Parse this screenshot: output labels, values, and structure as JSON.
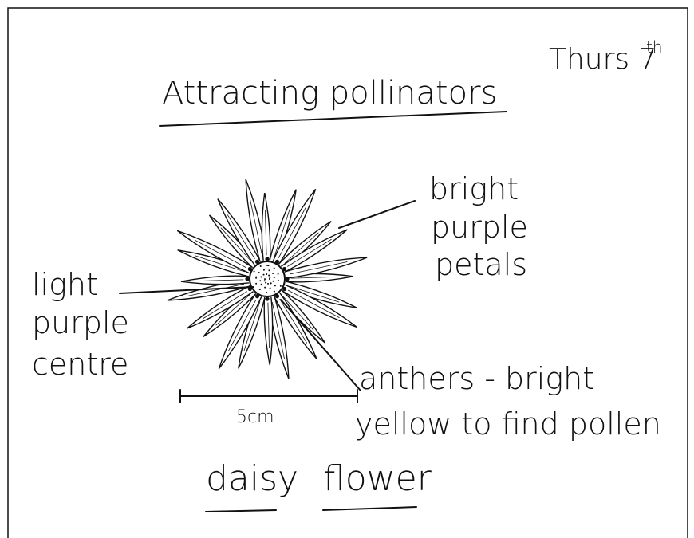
{
  "header": {
    "title": "Attracting pollinators",
    "date": "Thurs 7",
    "date_superscript": "th"
  },
  "labels": {
    "petals": [
      "bright",
      "purple",
      "petals"
    ],
    "centre": [
      "light",
      "purple",
      "centre"
    ],
    "anthers": [
      "anthers - bright",
      "yellow to find pollen"
    ]
  },
  "scale": "5cm",
  "caption": {
    "words": [
      "daisy",
      "flower"
    ]
  }
}
